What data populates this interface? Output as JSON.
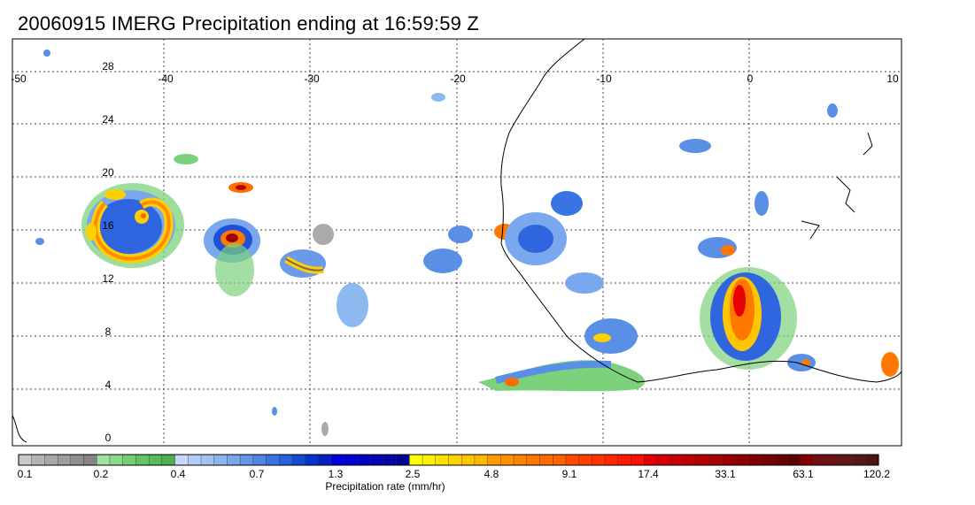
{
  "title": "20060915 IMERG Precipitation ending at 16:59:59 Z",
  "map": {
    "lon_ticks": [
      "-50",
      "-40",
      "-30",
      "-20",
      "-10",
      "0",
      "10"
    ],
    "lat_ticks": [
      "28",
      "24",
      "20",
      "16",
      "12",
      "8",
      "4",
      "0"
    ]
  },
  "colorbar": {
    "label": "Precipitation rate (mm/hr)",
    "tick_labels": [
      "0.1",
      "0.2",
      "0.4",
      "0.7",
      "1.3",
      "2.5",
      "4.8",
      "9.1",
      "17.4",
      "33.1",
      "63.1",
      "120.2"
    ],
    "colors": [
      "#c8c8c8",
      "#b4b4b4",
      "#a8a8a8",
      "#9c9c9c",
      "#909090",
      "#868686",
      "#9ee39e",
      "#8ad98a",
      "#76cf76",
      "#64c564",
      "#58bb58",
      "#4cb04c",
      "#c8d8ff",
      "#b4cdfa",
      "#a2c2f4",
      "#8eb6ee",
      "#78a8ea",
      "#6298e6",
      "#4e86e4",
      "#3a74e2",
      "#2860de",
      "#144cd6",
      "#0432cc",
      "#0020c4",
      "#0000e4",
      "#0000d4",
      "#0000c4",
      "#0000b4",
      "#0000a4",
      "#000094",
      "#ffff00",
      "#fff000",
      "#ffe200",
      "#ffd400",
      "#ffc600",
      "#ffb800",
      "#ff9c00",
      "#ff9000",
      "#ff8400",
      "#ff7800",
      "#ff6c00",
      "#ff6000",
      "#ff4a00",
      "#ff3e00",
      "#ff3200",
      "#ff2600",
      "#ff1a00",
      "#ff0e00",
      "#e60000",
      "#d80000",
      "#cc0000",
      "#c00000",
      "#b40000",
      "#a80000",
      "#9a0000",
      "#8e0000",
      "#820000",
      "#760000",
      "#6a0000",
      "#5e0000",
      "#800000",
      "#741010",
      "#6a1414",
      "#601818",
      "#561818",
      "#4c1414"
    ]
  }
}
